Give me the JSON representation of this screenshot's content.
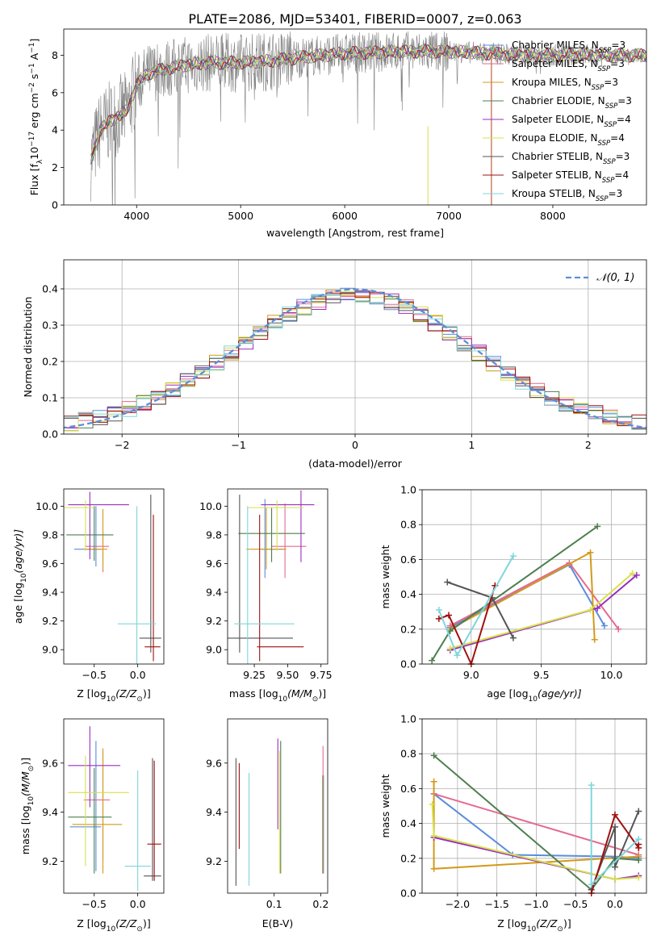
{
  "title": "PLATE=2086, MJD=53401, FIBERID=0007, z=0.063",
  "colors": {
    "chabrier_miles": "#5a8dd8",
    "salpeter_miles": "#e46a8e",
    "kroupa_miles": "#d39a1a",
    "chabrier_elodie": "#4f7f4f",
    "salpeter_elodie": "#9a2fc0",
    "kroupa_elodie": "#d8e04a",
    "chabrier_stelib": "#555555",
    "salpeter_stelib": "#a01010",
    "kroupa_stelib": "#7fd6dc",
    "spectrum": "#808080"
  },
  "chart_data": [
    {
      "id": "spectrum",
      "type": "line",
      "xlabel": "wavelength [Angstrom, rest frame]",
      "ylabel_parts": [
        "Flux [f",
        "λ",
        "10",
        "−17",
        " erg cm",
        "−2",
        " s",
        "−1",
        " A",
        "−1",
        "]"
      ],
      "xlim": [
        3300,
        8900
      ],
      "ylim": [
        0,
        9.4
      ],
      "xticks": [
        4000,
        5000,
        6000,
        7000,
        8000
      ],
      "yticks": [
        0,
        2,
        4,
        6,
        8
      ],
      "legend_position": "top-right",
      "legend": [
        {
          "imf": "Chabrier MILES",
          "n": "3",
          "color": "#5a8dd8"
        },
        {
          "imf": "Salpeter MILES",
          "n": "3",
          "color": "#e46a8e"
        },
        {
          "imf": "Kroupa MILES",
          "n": "3",
          "color": "#d39a1a"
        },
        {
          "imf": "Chabrier ELODIE",
          "n": "3",
          "color": "#4f7f4f"
        },
        {
          "imf": "Salpeter ELODIE",
          "n": "4",
          "color": "#9a2fc0"
        },
        {
          "imf": "Kroupa ELODIE",
          "n": "4",
          "color": "#d8e04a"
        },
        {
          "imf": "Chabrier STELIB",
          "n": "3",
          "color": "#555555"
        },
        {
          "imf": "Salpeter STELIB",
          "n": "4",
          "color": "#a01010"
        },
        {
          "imf": "Kroupa STELIB",
          "n": "3",
          "color": "#7fd6dc"
        }
      ],
      "continuum": [
        [
          3550,
          2.2
        ],
        [
          3650,
          4.0
        ],
        [
          3750,
          4.5
        ],
        [
          3900,
          5.0
        ],
        [
          4000,
          6.4
        ],
        [
          4100,
          7.0
        ],
        [
          4300,
          7.3
        ],
        [
          4500,
          7.5
        ],
        [
          4700,
          7.6
        ],
        [
          5000,
          7.6
        ],
        [
          5300,
          7.7
        ],
        [
          5600,
          7.9
        ],
        [
          6000,
          8.1
        ],
        [
          6500,
          8.2
        ],
        [
          7000,
          8.2
        ],
        [
          7400,
          8.1
        ],
        [
          7700,
          8.0
        ],
        [
          8100,
          8.0
        ],
        [
          8500,
          8.0
        ]
      ]
    },
    {
      "id": "residuals",
      "type": "histogram",
      "xlabel": "(data-model)/error",
      "ylabel": "Normed distribution",
      "xlim": [
        -2.5,
        2.5
      ],
      "ylim": [
        0,
        0.48
      ],
      "xticks": [
        -2,
        -1,
        0,
        1,
        2
      ],
      "yticks": [
        0.0,
        0.1,
        0.2,
        0.3,
        0.4
      ],
      "legend": "𝒩(0, 1)",
      "legend_position": "top-right",
      "bins_width": 0.125,
      "reference_curve": "normal(0,1)"
    },
    {
      "id": "age_vs_Z",
      "type": "scatter",
      "xlabel_parts": [
        "Z [log",
        "10",
        "(Z/Z",
        "⊙",
        ")]"
      ],
      "ylabel_parts": [
        "age  [log",
        "10",
        "(age/yr)]"
      ],
      "xlim": [
        -0.85,
        0.3
      ],
      "ylim": [
        8.9,
        10.12
      ],
      "xticks": [
        -0.5,
        0.0
      ],
      "yticks": [
        9.0,
        9.2,
        9.4,
        9.6,
        9.8,
        10.0
      ],
      "points": [
        {
          "color": "#5a8dd8",
          "x": -0.48,
          "y": 9.7,
          "xerr": [
            0.25,
            0.06
          ],
          "yerr": [
            0.12,
            0.3
          ]
        },
        {
          "color": "#e46a8e",
          "x": -0.4,
          "y": 9.72,
          "xerr": [
            0.2,
            0.07
          ],
          "yerr": [
            0.18,
            0.1
          ]
        },
        {
          "color": "#d39a1a",
          "x": -0.4,
          "y": 9.7,
          "xerr": [
            0.22,
            0.05
          ],
          "yerr": [
            0.14,
            0.28
          ]
        },
        {
          "color": "#4f7f4f",
          "x": -0.5,
          "y": 9.8,
          "xerr": [
            0.32,
            0.22
          ],
          "yerr": [
            0.18,
            0.2
          ]
        },
        {
          "color": "#9a2fc0",
          "x": -0.55,
          "y": 10.01,
          "xerr": [
            0.25,
            0.45
          ],
          "yerr": [
            0.38,
            0.09
          ]
        },
        {
          "color": "#d8e04a",
          "x": -0.6,
          "y": 9.99,
          "xerr": [
            0.25,
            0.1
          ],
          "yerr": [
            0.3,
            0.05
          ]
        },
        {
          "color": "#555555",
          "x": 0.15,
          "y": 9.08,
          "xerr": [
            0.13,
            0.12
          ],
          "yerr": [
            0.1,
            1.0
          ]
        },
        {
          "color": "#a01010",
          "x": 0.18,
          "y": 9.02,
          "xerr": [
            0.1,
            0.08
          ],
          "yerr": [
            0.1,
            0.92
          ]
        },
        {
          "color": "#7fd6dc",
          "x": -0.01,
          "y": 9.18,
          "xerr": [
            0.22,
            0.22
          ],
          "yerr": [
            0.4,
            0.82
          ]
        }
      ]
    },
    {
      "id": "age_vs_mass",
      "type": "scatter",
      "xlabel_parts": [
        "mass [log",
        "10",
        "(M/M",
        "⊙",
        ")]"
      ],
      "ylabel_parts": [],
      "xlim": [
        9.05,
        9.8
      ],
      "ylim": [
        8.9,
        10.12
      ],
      "xticks": [
        9.25,
        9.5,
        9.75
      ],
      "yticks": [
        9.0,
        9.2,
        9.4,
        9.6,
        9.8,
        10.0
      ],
      "points": [
        {
          "color": "#5a8dd8",
          "x": 9.33,
          "y": 9.7,
          "xerr": [
            0.03,
            0.14
          ],
          "yerr": [
            0.2,
            0.35
          ]
        },
        {
          "color": "#e46a8e",
          "x": 9.48,
          "y": 9.72,
          "xerr": [
            0.1,
            0.16
          ],
          "yerr": [
            0.22,
            0.3
          ]
        },
        {
          "color": "#d39a1a",
          "x": 9.34,
          "y": 9.7,
          "xerr": [
            0.15,
            0.15
          ],
          "yerr": [
            0.14,
            0.29
          ]
        },
        {
          "color": "#4f7f4f",
          "x": 9.38,
          "y": 9.81,
          "xerr": [
            0.25,
            0.25
          ],
          "yerr": [
            0.2,
            0.18
          ]
        },
        {
          "color": "#9a2fc0",
          "x": 9.6,
          "y": 10.01,
          "xerr": [
            0.3,
            0.1
          ],
          "yerr": [
            0.4,
            0.1
          ]
        },
        {
          "color": "#d8e04a",
          "x": 9.42,
          "y": 9.99,
          "xerr": [
            0.22,
            0.2
          ],
          "yerr": [
            0.3,
            0.05
          ]
        },
        {
          "color": "#555555",
          "x": 9.14,
          "y": 9.08,
          "xerr": [
            0.12,
            0.4
          ],
          "yerr": [
            0.1,
            1.0
          ]
        },
        {
          "color": "#a01010",
          "x": 9.29,
          "y": 9.02,
          "xerr": [
            0.02,
            0.33
          ],
          "yerr": [
            0.1,
            0.92
          ]
        },
        {
          "color": "#7fd6dc",
          "x": 9.2,
          "y": 9.18,
          "xerr": [
            0.1,
            0.35
          ],
          "yerr": [
            0.4,
            0.82
          ]
        }
      ]
    },
    {
      "id": "mass_weight_vs_age",
      "type": "line",
      "xlabel_parts": [
        "age  [log",
        "10",
        "(age/yr)]"
      ],
      "ylabel": "mass weight",
      "xlim": [
        8.65,
        10.25
      ],
      "ylim": [
        0,
        1.0
      ],
      "xticks": [
        9.0,
        9.5,
        10.0
      ],
      "yticks": [
        0.0,
        0.2,
        0.4,
        0.6,
        0.8,
        1.0
      ],
      "grid": true,
      "series": [
        {
          "color": "#5a8dd8",
          "x": [
            8.85,
            9.7,
            9.95
          ],
          "y": [
            0.21,
            0.57,
            0.22
          ]
        },
        {
          "color": "#e46a8e",
          "x": [
            8.85,
            9.7,
            10.05
          ],
          "y": [
            0.22,
            0.58,
            0.2
          ]
        },
        {
          "color": "#d39a1a",
          "x": [
            8.85,
            9.85,
            9.88
          ],
          "y": [
            0.2,
            0.64,
            0.14
          ]
        },
        {
          "color": "#4f7f4f",
          "x": [
            8.72,
            8.85,
            9.9
          ],
          "y": [
            0.02,
            0.19,
            0.79
          ]
        },
        {
          "color": "#9a2fc0",
          "x": [
            8.85,
            9.9,
            10.18
          ],
          "y": [
            0.08,
            0.32,
            0.51
          ]
        },
        {
          "color": "#d8e04a",
          "x": [
            8.85,
            9.85,
            10.15
          ],
          "y": [
            0.09,
            0.31,
            0.52
          ]
        },
        {
          "color": "#555555",
          "x": [
            8.83,
            9.15,
            9.3
          ],
          "y": [
            0.47,
            0.38,
            0.15
          ]
        },
        {
          "color": "#a01010",
          "x": [
            8.77,
            8.84,
            9.0,
            9.17
          ],
          "y": [
            0.26,
            0.28,
            0.0,
            0.45
          ]
        },
        {
          "color": "#7fd6dc",
          "x": [
            8.77,
            8.9,
            9.3
          ],
          "y": [
            0.31,
            0.05,
            0.62
          ]
        }
      ]
    },
    {
      "id": "mass_vs_Z",
      "type": "scatter",
      "xlabel_parts": [
        "Z [log",
        "10",
        "(Z/Z",
        "⊙",
        ")]"
      ],
      "ylabel_parts": [
        "mass [log",
        "10",
        "(M/M",
        "⊙",
        ")]"
      ],
      "xlim": [
        -0.85,
        0.3
      ],
      "ylim": [
        9.07,
        9.78
      ],
      "xticks": [
        -0.5,
        0.0
      ],
      "yticks": [
        9.2,
        9.4,
        9.6
      ],
      "points": [
        {
          "color": "#5a8dd8",
          "x": -0.48,
          "y": 9.34,
          "xerr": [
            0.3,
            0.06
          ],
          "yerr": [
            0.18,
            0.35
          ]
        },
        {
          "color": "#e46a8e",
          "x": -0.4,
          "y": 9.45,
          "xerr": [
            0.22,
            0.08
          ],
          "yerr": [
            0.25,
            0.2
          ]
        },
        {
          "color": "#d39a1a",
          "x": -0.4,
          "y": 9.35,
          "xerr": [
            0.35,
            0.22
          ],
          "yerr": [
            0.2,
            0.31
          ]
        },
        {
          "color": "#4f7f4f",
          "x": -0.5,
          "y": 9.38,
          "xerr": [
            0.3,
            0.2
          ],
          "yerr": [
            0.23,
            0.2
          ]
        },
        {
          "color": "#9a2fc0",
          "x": -0.55,
          "y": 9.59,
          "xerr": [
            0.25,
            0.35
          ],
          "yerr": [
            0.17,
            0.16
          ]
        },
        {
          "color": "#d8e04a",
          "x": -0.6,
          "y": 9.48,
          "xerr": [
            0.2,
            0.5
          ],
          "yerr": [
            0.3,
            0.15
          ]
        },
        {
          "color": "#555555",
          "x": 0.17,
          "y": 9.14,
          "xerr": [
            0.1,
            0.1
          ],
          "yerr": [
            0.02,
            0.48
          ]
        },
        {
          "color": "#a01010",
          "x": 0.19,
          "y": 9.27,
          "xerr": [
            0.08,
            0.08
          ],
          "yerr": [
            0.15,
            0.34
          ]
        },
        {
          "color": "#7fd6dc",
          "x": 0.0,
          "y": 9.18,
          "xerr": [
            0.15,
            0.15
          ],
          "yerr": [
            0.1,
            0.39
          ]
        }
      ]
    },
    {
      "id": "mass_vs_ebv",
      "type": "scatter",
      "xlabel": "E(B-V)",
      "xlim": [
        0.0,
        0.215
      ],
      "ylim": [
        9.07,
        9.78
      ],
      "xticks": [
        0.1,
        0.2
      ],
      "yticks": [
        9.2,
        9.4,
        9.6
      ],
      "points": [
        {
          "color": "#555555",
          "x": 0.018,
          "y": 9.38,
          "yerr": [
            0.28,
            0.24
          ]
        },
        {
          "color": "#a01010",
          "x": 0.025,
          "y": 9.42,
          "yerr": [
            0.17,
            0.18
          ]
        },
        {
          "color": "#7fd6dc",
          "x": 0.046,
          "y": 9.4,
          "yerr": [
            0.3,
            0.16
          ]
        },
        {
          "color": "#4f7f4f",
          "x": 0.114,
          "y": 9.42,
          "yerr": [
            0.27,
            0.27
          ]
        },
        {
          "color": "#9a2fc0",
          "x": 0.108,
          "y": 9.52,
          "yerr": [
            0.19,
            0.18
          ]
        },
        {
          "color": "#d8e04a",
          "x": 0.112,
          "y": 9.45,
          "yerr": [
            0.3,
            0.2
          ]
        },
        {
          "color": "#e46a8e",
          "x": 0.205,
          "y": 9.45,
          "yerr": [
            0.3,
            0.22
          ]
        },
        {
          "color": "#d39a1a",
          "x": 0.204,
          "y": 9.35,
          "yerr": [
            0.2,
            0.2
          ]
        },
        {
          "color": "#5a8dd8",
          "x": 0.206,
          "y": 9.4,
          "yerr": [
            0.25,
            0.15
          ]
        }
      ]
    },
    {
      "id": "mass_weight_vs_Z",
      "type": "line",
      "xlabel_parts": [
        "Z [log",
        "10",
        "(Z/Z",
        "⊙",
        ")]"
      ],
      "ylabel": "mass weight",
      "xlim": [
        -2.45,
        0.4
      ],
      "ylim": [
        0,
        1.0
      ],
      "xticks": [
        -2.0,
        -1.5,
        -1.0,
        -0.5,
        0.0
      ],
      "yticks": [
        0.0,
        0.2,
        0.4,
        0.6,
        0.8,
        1.0
      ],
      "grid": true,
      "series": [
        {
          "color": "#5a8dd8",
          "x": [
            -2.3,
            -1.3,
            0.0,
            0.3
          ],
          "y": [
            0.57,
            0.22,
            0.21,
            0.2
          ]
        },
        {
          "color": "#e46a8e",
          "x": [
            -2.3,
            0.3
          ],
          "y": [
            0.57,
            0.22
          ]
        },
        {
          "color": "#d39a1a",
          "x": [
            -2.3,
            -2.3,
            0.3
          ],
          "y": [
            0.64,
            0.14,
            0.21
          ]
        },
        {
          "color": "#4f7f4f",
          "x": [
            -2.3,
            -0.3,
            0.0,
            0.3
          ],
          "y": [
            0.79,
            0.02,
            0.2,
            0.19
          ]
        },
        {
          "color": "#9a2fc0",
          "x": [
            -2.3,
            0.0,
            0.3
          ],
          "y": [
            0.32,
            0.08,
            0.1
          ]
        },
        {
          "color": "#d8e04a",
          "x": [
            -2.32,
            -2.3,
            0.0,
            0.3
          ],
          "y": [
            0.51,
            0.33,
            0.08,
            0.09
          ]
        },
        {
          "color": "#555555",
          "x": [
            -0.3,
            0.0,
            0.0,
            0.3
          ],
          "y": [
            0.02,
            0.38,
            0.15,
            0.47
          ]
        },
        {
          "color": "#a01010",
          "x": [
            -0.3,
            0.0,
            0.3,
            0.3
          ],
          "y": [
            0.0,
            0.45,
            0.26,
            0.28
          ]
        },
        {
          "color": "#7fd6dc",
          "x": [
            -0.3,
            -0.3,
            0.3
          ],
          "y": [
            0.62,
            0.05,
            0.31
          ]
        }
      ]
    }
  ]
}
